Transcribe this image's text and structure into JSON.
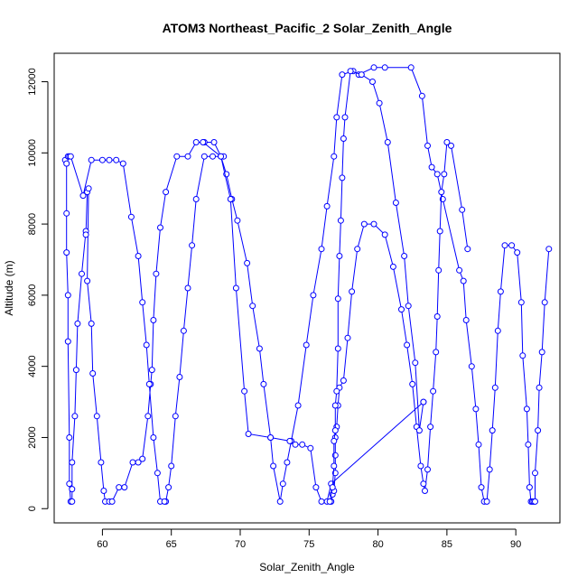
{
  "chart_data": {
    "type": "line",
    "title": "ATOM3 Northeast_Pacific_2 Solar_Zenith_Angle",
    "xlabel": "Solar_Zenith_Angle",
    "ylabel": "Altitude (m)",
    "xlim": [
      56.5,
      93.2
    ],
    "ylim": [
      -400,
      12800
    ],
    "xticks": [
      60,
      65,
      70,
      75,
      80,
      85,
      90
    ],
    "yticks": [
      0,
      2000,
      4000,
      6000,
      8000,
      10000,
      12000
    ],
    "line_style": "both",
    "marker": "open-circle",
    "color": "#0000ff",
    "grid": false,
    "series": [
      {
        "points": [
          [
            57.3,
            9800
          ],
          [
            57.5,
            9900
          ],
          [
            57.6,
            9900
          ],
          [
            57.4,
            9700
          ],
          [
            57.4,
            8300
          ],
          [
            57.4,
            7200
          ],
          [
            57.5,
            6000
          ],
          [
            57.5,
            4700
          ],
          [
            57.6,
            2000
          ],
          [
            57.6,
            700
          ],
          [
            57.7,
            200
          ],
          [
            57.8,
            200
          ],
          [
            57.8,
            550
          ],
          [
            57.8,
            1300
          ],
          [
            58.0,
            2600
          ],
          [
            58.1,
            3900
          ],
          [
            58.2,
            5200
          ],
          [
            58.5,
            6600
          ],
          [
            58.8,
            7800
          ],
          [
            58.8,
            7700
          ],
          [
            58.9,
            8900
          ],
          [
            59.0,
            9000
          ],
          [
            58.9,
            6400
          ],
          [
            59.2,
            5200
          ],
          [
            59.3,
            3800
          ],
          [
            59.6,
            2600
          ],
          [
            59.9,
            1300
          ],
          [
            60.1,
            500
          ],
          [
            60.2,
            200
          ],
          [
            60.5,
            200
          ],
          [
            60.7,
            200
          ],
          [
            61.2,
            600
          ],
          [
            61.6,
            600
          ],
          [
            62.2,
            1300
          ],
          [
            62.6,
            1300
          ],
          [
            62.9,
            1400
          ],
          [
            63.3,
            2600
          ],
          [
            63.5,
            3500
          ],
          [
            63.6,
            3900
          ],
          [
            63.7,
            5300
          ],
          [
            63.9,
            6600
          ],
          [
            64.2,
            7900
          ],
          [
            64.6,
            8900
          ],
          [
            65.4,
            9900
          ],
          [
            66.2,
            9900
          ],
          [
            66.8,
            10300
          ],
          [
            67.4,
            10300
          ],
          [
            68.1,
            10300
          ],
          [
            68.6,
            9900
          ],
          [
            69.0,
            9400
          ],
          [
            69.4,
            8700
          ],
          [
            69.8,
            8100
          ],
          [
            70.5,
            6900
          ],
          [
            70.9,
            5700
          ],
          [
            71.4,
            4500
          ],
          [
            71.7,
            3500
          ],
          [
            72.2,
            2000
          ],
          [
            72.4,
            1200
          ],
          [
            72.9,
            200
          ],
          [
            73.1,
            700
          ],
          [
            73.4,
            1300
          ],
          [
            73.7,
            1900
          ],
          [
            74.2,
            2900
          ],
          [
            74.8,
            4600
          ],
          [
            75.3,
            6000
          ],
          [
            75.9,
            7300
          ],
          [
            76.3,
            8500
          ],
          [
            76.8,
            9900
          ],
          [
            77.0,
            11000
          ],
          [
            77.4,
            12200
          ],
          [
            78.2,
            12300
          ],
          [
            78.6,
            12200
          ],
          [
            79.7,
            12400
          ],
          [
            80.5,
            12400
          ],
          [
            82.4,
            12400
          ],
          [
            83.2,
            11600
          ],
          [
            83.6,
            10200
          ],
          [
            83.9,
            9600
          ],
          [
            84.3,
            9400
          ],
          [
            84.7,
            8700
          ],
          [
            85.9,
            6700
          ],
          [
            86.2,
            6400
          ],
          [
            86.4,
            5300
          ],
          [
            86.8,
            4000
          ],
          [
            87.1,
            2800
          ],
          [
            87.3,
            1800
          ],
          [
            87.5,
            600
          ],
          [
            87.7,
            200
          ],
          [
            87.9,
            200
          ],
          [
            88.1,
            1100
          ],
          [
            88.3,
            2200
          ],
          [
            88.5,
            3400
          ],
          [
            88.7,
            5000
          ],
          [
            88.9,
            6100
          ],
          [
            89.2,
            7400
          ],
          [
            89.7,
            7400
          ],
          [
            90.1,
            7200
          ],
          [
            90.4,
            5800
          ],
          [
            90.5,
            4300
          ],
          [
            90.8,
            2800
          ],
          [
            90.9,
            1800
          ],
          [
            91.0,
            600
          ],
          [
            91.1,
            200
          ],
          [
            91.2,
            200
          ],
          [
            91.3,
            200
          ],
          [
            91.4,
            200
          ],
          [
            91.4,
            1000
          ],
          [
            91.6,
            2200
          ],
          [
            91.7,
            3400
          ],
          [
            91.9,
            4400
          ],
          [
            92.1,
            5800
          ],
          [
            92.4,
            7300
          ]
        ]
      },
      {
        "points": [
          [
            64.6,
            200
          ],
          [
            64.8,
            600
          ],
          [
            65.0,
            1200
          ],
          [
            65.3,
            2600
          ],
          [
            65.6,
            3700
          ],
          [
            65.9,
            5000
          ],
          [
            66.2,
            6200
          ],
          [
            66.5,
            7400
          ],
          [
            66.8,
            8700
          ],
          [
            67.4,
            9900
          ],
          [
            68.0,
            9900
          ],
          [
            68.8,
            9900
          ]
        ]
      },
      {
        "points": [
          [
            76.6,
            200
          ],
          [
            76.7,
            400
          ],
          [
            76.8,
            500
          ],
          [
            76.9,
            1000
          ],
          [
            76.9,
            1500
          ],
          [
            76.9,
            2000
          ],
          [
            77.0,
            2300
          ],
          [
            77.1,
            2900
          ],
          [
            77.2,
            3400
          ],
          [
            77.5,
            3600
          ],
          [
            77.8,
            4800
          ],
          [
            78.1,
            6100
          ],
          [
            78.5,
            7300
          ],
          [
            79.0,
            8000
          ],
          [
            79.7,
            8000
          ],
          [
            80.5,
            7700
          ],
          [
            81.1,
            6800
          ],
          [
            81.7,
            5600
          ],
          [
            82.1,
            4600
          ],
          [
            82.5,
            3500
          ],
          [
            82.8,
            2300
          ],
          [
            83.1,
            1200
          ],
          [
            83.3,
            700
          ],
          [
            83.4,
            500
          ],
          [
            83.6,
            1100
          ],
          [
            83.8,
            2300
          ],
          [
            84.0,
            3300
          ],
          [
            84.2,
            4400
          ],
          [
            84.3,
            5400
          ],
          [
            84.4,
            6700
          ],
          [
            84.5,
            7800
          ],
          [
            84.6,
            8900
          ],
          [
            84.8,
            9400
          ],
          [
            85.0,
            10300
          ],
          [
            85.3,
            10200
          ],
          [
            86.1,
            8400
          ],
          [
            86.5,
            7300
          ]
        ]
      },
      {
        "points": [
          [
            83.3,
            3000
          ],
          [
            76.6,
            700
          ],
          [
            76.3,
            200
          ],
          [
            75.9,
            200
          ],
          [
            75.5,
            600
          ],
          [
            75.1,
            1700
          ],
          [
            74.5,
            1800
          ],
          [
            74.0,
            1800
          ],
          [
            73.6,
            1900
          ],
          [
            72.2,
            2000
          ],
          [
            70.6,
            2100
          ],
          [
            70.3,
            3300
          ],
          [
            69.7,
            6200
          ],
          [
            69.3,
            8700
          ],
          [
            68.6,
            9900
          ],
          [
            67.3,
            10300
          ]
        ]
      },
      {
        "points": [
          [
            76.5,
            200
          ],
          [
            76.7,
            600
          ],
          [
            76.8,
            1200
          ],
          [
            76.8,
            1900
          ],
          [
            76.9,
            2200
          ],
          [
            76.9,
            2900
          ],
          [
            77.0,
            3300
          ],
          [
            77.1,
            4500
          ],
          [
            77.1,
            5900
          ],
          [
            77.2,
            7100
          ],
          [
            77.3,
            8100
          ],
          [
            77.4,
            9300
          ],
          [
            77.5,
            10400
          ],
          [
            77.6,
            11000
          ],
          [
            78.0,
            12300
          ],
          [
            78.8,
            12200
          ],
          [
            79.6,
            12000
          ],
          [
            80.1,
            11400
          ],
          [
            80.7,
            10300
          ],
          [
            81.3,
            8600
          ],
          [
            81.9,
            7100
          ],
          [
            82.2,
            5700
          ],
          [
            82.7,
            4100
          ],
          [
            83.0,
            2200
          ],
          [
            83.3,
            3000
          ]
        ]
      },
      {
        "points": [
          [
            57.7,
            9900
          ],
          [
            58.6,
            8800
          ],
          [
            59.2,
            9800
          ],
          [
            60.0,
            9800
          ],
          [
            60.5,
            9800
          ],
          [
            61.0,
            9800
          ],
          [
            61.5,
            9700
          ],
          [
            62.1,
            8200
          ],
          [
            62.6,
            7100
          ],
          [
            62.9,
            5800
          ],
          [
            63.2,
            4600
          ],
          [
            63.4,
            3500
          ],
          [
            63.7,
            2000
          ],
          [
            64.0,
            1000
          ],
          [
            64.2,
            200
          ],
          [
            64.5,
            200
          ]
        ]
      }
    ]
  }
}
